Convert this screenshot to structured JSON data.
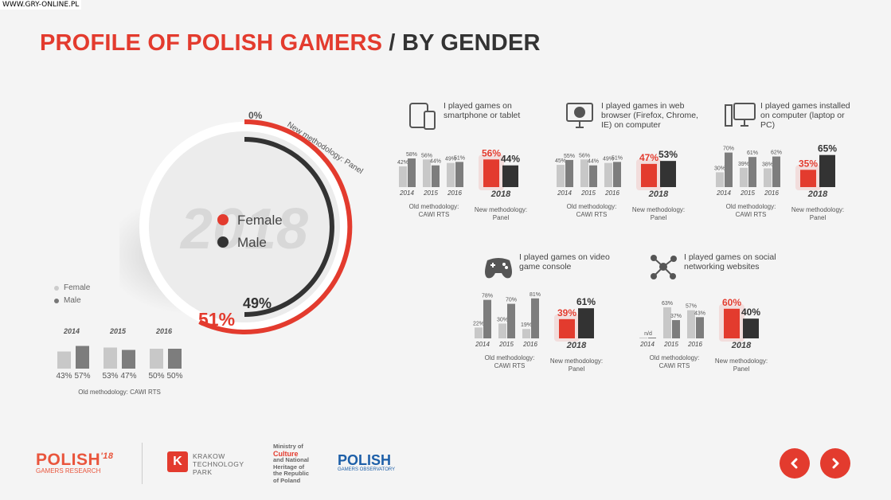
{
  "watermark": "WWW.GRY-ONLINE.PL",
  "title": {
    "part1": "PROFILE OF POLISH GAMERS",
    "part2": " / BY GENDER"
  },
  "colors": {
    "accent": "#e33b2e",
    "male": "#333333",
    "old_female": "#c8c8c8",
    "old_male": "#7d7d7d"
  },
  "donut": {
    "watermark_year": "2018",
    "zero_label": "0%",
    "method_label": "New methodology: Panel",
    "female_label": "Female",
    "male_label": "Male",
    "female_pct": "51%",
    "male_pct": "49%"
  },
  "old_legend": {
    "female": "Female",
    "male": "Male",
    "note": "Old methodology: CAWI RTS"
  },
  "footer": {
    "pg_logo": "POLISH",
    "pg_sup": "'18",
    "pg_sub": "GAMERS RESEARCH",
    "ktp_icon": "K",
    "ktp_l1": "KRAKOW",
    "ktp_l2": "TECHNOLOGY",
    "ktp_l3": "PARK",
    "min_l1": "Ministry of",
    "min_l2": "Culture",
    "min_l3": "and National",
    "min_l4": "Heritage of",
    "min_l5": "the Republic",
    "min_l6": "of Poland",
    "po_l1": "POLISH",
    "po_l2": "GAMERS OBSERVATORY"
  },
  "panel_labels": {
    "old_l1": "Old methodology:",
    "old_l2": "CAWI RTS",
    "new_l1": "New methodology:",
    "new_l2": "Panel"
  },
  "chart_data": [
    {
      "type": "bar",
      "title": "Overall gamers by gender, old methodology",
      "categories": [
        "2014",
        "2015",
        "2016"
      ],
      "series": [
        {
          "name": "Female",
          "values": [
            43,
            53,
            50
          ],
          "labels": [
            "43%",
            "53%",
            "50%"
          ]
        },
        {
          "name": "Male",
          "values": [
            57,
            47,
            50
          ],
          "labels": [
            "57%",
            "47%",
            "50%"
          ]
        }
      ]
    },
    {
      "type": "pie",
      "title": "2018 new methodology",
      "categories": [
        "Female",
        "Male"
      ],
      "values": [
        51,
        49
      ]
    },
    {
      "type": "bar",
      "title": "I played games on smartphone or tablet",
      "icon": "smartphone-tablet-icon",
      "categories": [
        "2014",
        "2015",
        "2016"
      ],
      "series": [
        {
          "name": "Female",
          "values": [
            42,
            56,
            49
          ],
          "labels": [
            "42%",
            "56%",
            "49%"
          ]
        },
        {
          "name": "Male",
          "values": [
            58,
            44,
            51
          ],
          "labels": [
            "58%",
            "44%",
            "51%"
          ]
        }
      ],
      "new_year": "2018",
      "new_female": 56,
      "new_female_label": "56%",
      "new_male": 44,
      "new_male_label": "44%"
    },
    {
      "type": "bar",
      "title": "I played games in web browser (Firefox, Chrome, IE) on computer",
      "icon": "web-browser-icon",
      "categories": [
        "2014",
        "2015",
        "2016"
      ],
      "series": [
        {
          "name": "Female",
          "values": [
            45,
            56,
            49
          ],
          "labels": [
            "45%",
            "56%",
            "49%"
          ]
        },
        {
          "name": "Male",
          "values": [
            55,
            44,
            51
          ],
          "labels": [
            "55%",
            "44%",
            "51%"
          ]
        }
      ],
      "new_year": "2018",
      "new_female": 47,
      "new_female_label": "47%",
      "new_male": 53,
      "new_male_label": "53%"
    },
    {
      "type": "bar",
      "title": "I played games installed on computer (laptop or PC)",
      "icon": "desktop-computer-icon",
      "categories": [
        "2014",
        "2015",
        "2016"
      ],
      "series": [
        {
          "name": "Female",
          "values": [
            30,
            39,
            38
          ],
          "labels": [
            "30%",
            "39%",
            "38%"
          ]
        },
        {
          "name": "Male",
          "values": [
            70,
            61,
            62
          ],
          "labels": [
            "70%",
            "61%",
            "62%"
          ]
        }
      ],
      "new_year": "2018",
      "new_female": 35,
      "new_female_label": "35%",
      "new_male": 65,
      "new_male_label": "65%"
    },
    {
      "type": "bar",
      "title": "I played games on video game console",
      "icon": "gamepad-icon",
      "categories": [
        "2014",
        "2015",
        "2016"
      ],
      "series": [
        {
          "name": "Female",
          "values": [
            22,
            30,
            19
          ],
          "labels": [
            "22%",
            "30%",
            "19%"
          ]
        },
        {
          "name": "Male",
          "values": [
            78,
            70,
            81
          ],
          "labels": [
            "78%",
            "70%",
            "81%"
          ]
        }
      ],
      "new_year": "2018",
      "new_female": 39,
      "new_female_label": "39%",
      "new_male": 61,
      "new_male_label": "61%"
    },
    {
      "type": "bar",
      "title": "I played games on social networking websites",
      "icon": "social-network-icon",
      "categories": [
        "2014",
        "2015",
        "2016"
      ],
      "series": [
        {
          "name": "Female",
          "values": [
            null,
            63,
            57
          ],
          "labels": [
            "n/d",
            "63%",
            "57%"
          ]
        },
        {
          "name": "Male",
          "values": [
            null,
            37,
            43
          ],
          "labels": [
            "",
            "37%",
            "43%"
          ]
        }
      ],
      "new_year": "2018",
      "new_female": 60,
      "new_female_label": "60%",
      "new_male": 40,
      "new_male_label": "40%"
    }
  ]
}
